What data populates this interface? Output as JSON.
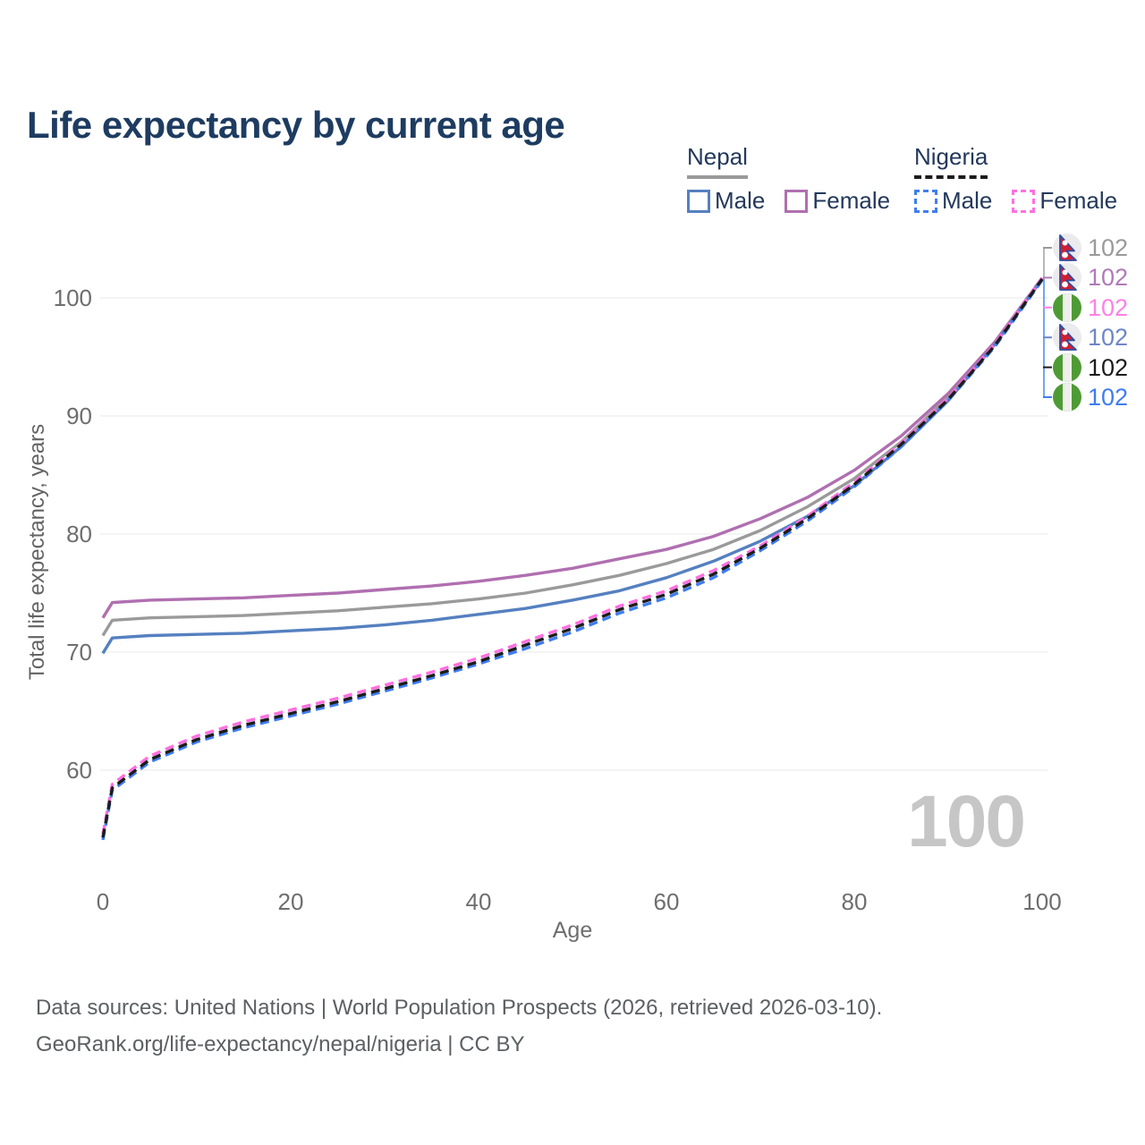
{
  "title": "Life expectancy by current age",
  "watermark": "100",
  "footer": {
    "line1": "Data sources: United Nations | World Population Prospects (2026, retrieved 2026-03-10).",
    "line2": "GeoRank.org/life-expectancy/nepal/nigeria | CC BY"
  },
  "colors": {
    "title": "#1e3c61",
    "legend_text": "#23395b",
    "axis_text": "#6e6e6e",
    "grid": "#e8e8e8",
    "footer_text": "#5c5f63",
    "watermark": "#c6c6c6",
    "nepal_male": "#5580c0",
    "nepal_female": "#b06fb0",
    "nepal_both": "#9a9a9a",
    "nigeria_male": "#3f7df0",
    "nigeria_female": "#ff70e0",
    "nigeria_both": "#1c1c1c",
    "nepal_flag_red": "#d11f33",
    "nepal_flag_blue": "#2f4da0",
    "nigeria_flag_green": "#4e9b35"
  },
  "legend": {
    "groups": [
      {
        "country": "Nepal",
        "line_style": "solid",
        "underline_color": "#9a9a9a",
        "items": [
          {
            "label": "Male",
            "color": "#5580c0"
          },
          {
            "label": "Female",
            "color": "#b06fb0"
          }
        ]
      },
      {
        "country": "Nigeria",
        "line_style": "dashed",
        "underline_color": "#1c1c1c",
        "items": [
          {
            "label": "Male",
            "color": "#3f7df0"
          },
          {
            "label": "Female",
            "color": "#ff70e0"
          }
        ]
      }
    ]
  },
  "chart_data": {
    "type": "line",
    "title": "Life expectancy by current age",
    "xlabel": "Age",
    "ylabel": "Total life expectancy, years",
    "xlim": [
      0,
      100
    ],
    "ylim": [
      54,
      102
    ],
    "x_ticks": [
      0,
      20,
      40,
      60,
      80,
      100
    ],
    "y_ticks": [
      60,
      70,
      80,
      90,
      100
    ],
    "grid": "horizontal",
    "legend_position": "top-right",
    "ages": [
      0,
      1,
      5,
      10,
      15,
      20,
      25,
      30,
      35,
      40,
      45,
      50,
      55,
      60,
      65,
      70,
      75,
      80,
      85,
      90,
      95,
      100
    ],
    "series": [
      {
        "name": "Nepal Both sexes",
        "country": "Nepal",
        "sex": "Both",
        "color": "#9a9a9a",
        "dash": false,
        "end_label": "102",
        "values": [
          71.4,
          72.7,
          72.9,
          73.0,
          73.1,
          73.3,
          73.5,
          73.8,
          74.1,
          74.5,
          75.0,
          75.7,
          76.5,
          77.5,
          78.7,
          80.3,
          82.3,
          84.7,
          87.8,
          91.6,
          96.2,
          101.6
        ]
      },
      {
        "name": "Nepal Female",
        "country": "Nepal",
        "sex": "Female",
        "color": "#b06fb0",
        "dash": false,
        "end_label": "102",
        "values": [
          72.9,
          74.2,
          74.4,
          74.5,
          74.6,
          74.8,
          75.0,
          75.3,
          75.6,
          76.0,
          76.5,
          77.1,
          77.9,
          78.7,
          79.8,
          81.3,
          83.1,
          85.4,
          88.3,
          91.9,
          96.3,
          101.7
        ]
      },
      {
        "name": "Nepal Male",
        "country": "Nepal",
        "sex": "Male",
        "color": "#5580c0",
        "dash": false,
        "end_label": "102",
        "values": [
          69.9,
          71.2,
          71.4,
          71.5,
          71.6,
          71.8,
          72.0,
          72.3,
          72.7,
          73.2,
          73.7,
          74.4,
          75.2,
          76.3,
          77.7,
          79.4,
          81.5,
          84.1,
          87.4,
          91.3,
          96.1,
          101.6
        ]
      },
      {
        "name": "Nigeria Male",
        "country": "Nigeria",
        "sex": "Male",
        "color": "#3f7df0",
        "dash": true,
        "end_label": "102",
        "values": [
          54.1,
          58.3,
          60.7,
          62.4,
          63.6,
          64.6,
          65.6,
          66.7,
          67.8,
          69.0,
          70.3,
          71.7,
          73.3,
          74.6,
          76.3,
          78.6,
          81.1,
          84.0,
          87.4,
          91.3,
          95.9,
          101.5
        ]
      },
      {
        "name": "Nigeria Female",
        "country": "Nigeria",
        "sex": "Female",
        "color": "#ff70e0",
        "dash": true,
        "end_label": "102",
        "values": [
          54.6,
          58.8,
          61.2,
          62.9,
          64.1,
          65.1,
          66.1,
          67.2,
          68.3,
          69.5,
          70.9,
          72.3,
          73.9,
          75.2,
          76.9,
          79.0,
          81.5,
          84.4,
          87.7,
          91.5,
          96.1,
          101.7
        ]
      },
      {
        "name": "Nigeria Both sexes",
        "country": "Nigeria",
        "sex": "Both",
        "color": "#1c1c1c",
        "dash": true,
        "end_label": "102",
        "values": [
          54.3,
          58.5,
          60.9,
          62.6,
          63.8,
          64.8,
          65.8,
          66.9,
          68.0,
          69.2,
          70.6,
          72.0,
          73.6,
          74.9,
          76.6,
          78.8,
          81.3,
          84.2,
          87.6,
          91.4,
          96.0,
          101.6
        ]
      }
    ],
    "end_labels": [
      {
        "flag": "nepal",
        "label": "102",
        "color": "#9a9a9a",
        "series": "Nepal Both sexes"
      },
      {
        "flag": "nepal",
        "label": "102",
        "color": "#b07ab8",
        "series": "Nepal Female"
      },
      {
        "flag": "nigeria",
        "label": "102",
        "color": "#ff80e5",
        "series": "Nigeria Female"
      },
      {
        "flag": "nepal",
        "label": "102",
        "color": "#6d86c8",
        "series": "Nepal Male"
      },
      {
        "flag": "nigeria",
        "label": "102",
        "color": "#1c1c1c",
        "series": "Nigeria Both sexes"
      },
      {
        "flag": "nigeria",
        "label": "102",
        "color": "#3f7df0",
        "series": "Nigeria Male"
      }
    ]
  }
}
